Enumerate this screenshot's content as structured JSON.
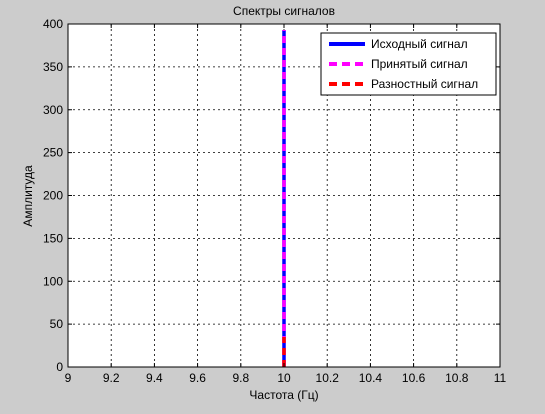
{
  "chart_data": {
    "type": "line",
    "title": "Спектры сигналов",
    "xlabel": "Частота (Гц)",
    "ylabel": "Амплитуда",
    "xlim": [
      9,
      11
    ],
    "ylim": [
      0,
      400
    ],
    "x_ticks": [
      "9",
      "9.2",
      "9.4",
      "9.6",
      "9.8",
      "10",
      "10.2",
      "10.4",
      "10.6",
      "10.8",
      "11"
    ],
    "y_ticks": [
      "0",
      "50",
      "100",
      "150",
      "200",
      "250",
      "300",
      "350",
      "400"
    ],
    "grid": true,
    "legend_position": "top-right",
    "series": [
      {
        "name": "Исходный сигнал",
        "color": "#0000ff",
        "style": "solid",
        "x": [
          10,
          10
        ],
        "y": [
          0,
          393
        ]
      },
      {
        "name": "Принятый сигнал",
        "color": "#ff00ff",
        "style": "dashed",
        "x": [
          10,
          10
        ],
        "y": [
          0,
          393
        ]
      },
      {
        "name": "Разностный сигнал",
        "color": "#ff0000",
        "style": "dashed",
        "x": [
          10,
          10
        ],
        "y": [
          0,
          35
        ]
      }
    ]
  }
}
